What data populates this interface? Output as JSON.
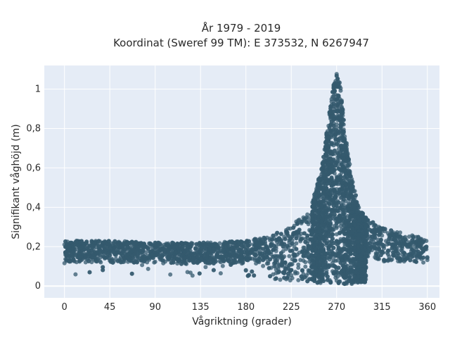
{
  "chart_data": {
    "type": "scatter",
    "title": "År 1979 - 2019",
    "subtitle": "Koordinat (Sweref 99 TM): E 373532, N 6267947",
    "xlabel": "Vågriktning (grader)",
    "ylabel": "Signifikant våghöjd (m)",
    "xlim": [
      -20,
      372
    ],
    "ylim": [
      -0.06,
      1.12
    ],
    "x_ticks": [
      0,
      45,
      90,
      135,
      180,
      225,
      270,
      315,
      360
    ],
    "x_tick_labels": [
      "0",
      "45",
      "90",
      "135",
      "180",
      "225",
      "270",
      "315",
      "360"
    ],
    "y_ticks": [
      0,
      0.2,
      0.4,
      0.6,
      0.8,
      1
    ],
    "y_tick_labels": [
      "0",
      "0,2",
      "0,4",
      "0,6",
      "0,8",
      "1"
    ],
    "grid": true,
    "marker_color": "#34596e",
    "plot_bg": "#e5ecf6",
    "series": [
      {
        "points_note_excluded": true,
        "profile": {
          "x": [
            0,
            20,
            45,
            90,
            135,
            180,
            200,
            215,
            225,
            235,
            245,
            255,
            262,
            266,
            270,
            274,
            278,
            285,
            292,
            300,
            315,
            335,
            360
          ],
          "y_min": [
            0.05,
            0.06,
            0.06,
            0.06,
            0.05,
            0.05,
            0.04,
            0.03,
            0.02,
            0.02,
            0.01,
            0.01,
            0.01,
            0.01,
            0.01,
            0.01,
            0.01,
            0.01,
            0.02,
            0.02,
            0.03,
            0.04,
            0.05
          ],
          "y_max": [
            0.23,
            0.23,
            0.23,
            0.22,
            0.22,
            0.23,
            0.25,
            0.28,
            0.31,
            0.35,
            0.42,
            0.6,
            0.85,
            1.02,
            1.08,
            1.02,
            0.8,
            0.55,
            0.4,
            0.34,
            0.3,
            0.27,
            0.24
          ]
        }
      }
    ]
  }
}
